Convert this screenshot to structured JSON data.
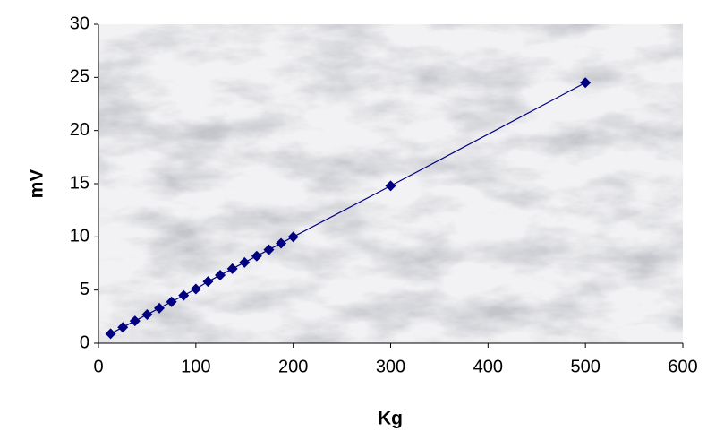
{
  "chart_data": {
    "type": "line",
    "x_label": "Kg",
    "y_label": "mV",
    "x": [
      12.5,
      25,
      37.5,
      50,
      62.5,
      75,
      87.5,
      100,
      112.5,
      125,
      137.5,
      150,
      162.5,
      175,
      187.5,
      200,
      300,
      500
    ],
    "series": [
      {
        "color": "#000080",
        "values": [
          0.9,
          1.5,
          2.1,
          2.7,
          3.3,
          3.9,
          4.5,
          5.1,
          5.8,
          6.4,
          7.0,
          7.6,
          8.2,
          8.8,
          9.4,
          10.0,
          14.8,
          24.5
        ]
      }
    ],
    "xlim": [
      0,
      600
    ],
    "xticks": [
      0,
      100,
      200,
      300,
      400,
      500,
      600
    ],
    "ylim": [
      0,
      30
    ],
    "yticks": [
      0,
      5,
      10,
      15,
      20,
      25,
      30
    ]
  }
}
